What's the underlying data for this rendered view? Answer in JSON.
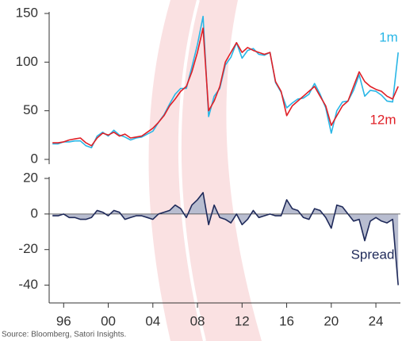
{
  "chart_data": [
    {
      "type": "line",
      "x": [
        1995,
        1995.5,
        1996,
        1996.5,
        1997,
        1997.5,
        1998,
        1998.5,
        1999,
        1999.5,
        2000,
        2000.5,
        2001,
        2001.5,
        2002,
        2002.5,
        2003,
        2003.5,
        2004,
        2004.5,
        2005,
        2005.5,
        2006,
        2006.5,
        2007,
        2007.5,
        2008,
        2008.5,
        2009,
        2009.5,
        2010,
        2010.5,
        2011,
        2011.5,
        2012,
        2012.5,
        2013,
        2013.5,
        2014,
        2014.5,
        2015,
        2015.5,
        2016,
        2016.5,
        2017,
        2017.5,
        2018,
        2018.5,
        2019,
        2019.5,
        2020,
        2020.5,
        2021,
        2021.5,
        2022,
        2022.5,
        2023,
        2023.5,
        2024,
        2024.5,
        2025,
        2025.5,
        2026
      ],
      "series": [
        {
          "name": "1m",
          "color": "#29b6e6",
          "values": [
            16,
            16,
            18,
            18,
            19,
            19,
            14,
            12,
            24,
            28,
            24,
            30,
            25,
            23,
            20,
            22,
            23,
            26,
            29,
            38,
            46,
            57,
            67,
            73,
            73,
            95,
            118,
            147,
            44,
            65,
            73,
            97,
            105,
            120,
            104,
            112,
            114,
            108,
            107,
            110,
            79,
            69,
            53,
            58,
            62,
            63,
            67,
            78,
            67,
            53,
            27,
            50,
            59,
            60,
            71,
            87,
            65,
            71,
            70,
            66,
            60,
            59,
            110
          ]
        },
        {
          "name": "12m",
          "color": "#e01f26",
          "values": [
            17,
            17,
            18,
            20,
            21,
            22,
            17,
            14,
            22,
            27,
            25,
            28,
            24,
            26,
            22,
            23,
            24,
            28,
            32,
            38,
            45,
            55,
            62,
            70,
            75,
            90,
            110,
            135,
            50,
            60,
            75,
            100,
            110,
            120,
            110,
            115,
            112,
            110,
            108,
            110,
            80,
            70,
            45,
            55,
            60,
            65,
            70,
            75,
            65,
            55,
            35,
            45,
            55,
            60,
            75,
            90,
            80,
            75,
            72,
            70,
            65,
            62,
            75
          ]
        }
      ],
      "xlim": [
        1994.7,
        2026.2
      ],
      "ylim": [
        0,
        150
      ],
      "yticks": [
        0,
        50,
        100,
        150
      ]
    },
    {
      "type": "area",
      "x": [
        1995,
        1995.5,
        1996,
        1996.5,
        1997,
        1997.5,
        1998,
        1998.5,
        1999,
        1999.5,
        2000,
        2000.5,
        2001,
        2001.5,
        2002,
        2002.5,
        2003,
        2003.5,
        2004,
        2004.5,
        2005,
        2005.5,
        2006,
        2006.5,
        2007,
        2007.5,
        2008,
        2008.5,
        2009,
        2009.5,
        2010,
        2010.5,
        2011,
        2011.5,
        2012,
        2012.5,
        2013,
        2013.5,
        2014,
        2014.5,
        2015,
        2015.5,
        2016,
        2016.5,
        2017,
        2017.5,
        2018,
        2018.5,
        2019,
        2019.5,
        2020,
        2020.5,
        2021,
        2021.5,
        2022,
        2022.5,
        2023,
        2023.5,
        2024,
        2024.5,
        2025,
        2025.5,
        2026
      ],
      "series": [
        {
          "name": "Spread",
          "color": "#1f2a5a",
          "fill": "#b8bdd0",
          "values": [
            -1,
            -1,
            0,
            -2,
            -2,
            -3,
            -3,
            -2,
            2,
            1,
            -1,
            2,
            1,
            -3,
            -2,
            -1,
            -1,
            -2,
            -3,
            0,
            1,
            2,
            5,
            3,
            -2,
            5,
            8,
            12,
            -6,
            5,
            -2,
            -3,
            -5,
            0,
            -6,
            -3,
            2,
            -2,
            -1,
            0,
            -1,
            -1,
            8,
            3,
            2,
            -2,
            -3,
            3,
            2,
            -2,
            -8,
            5,
            4,
            0,
            -4,
            -3,
            -15,
            -4,
            -2,
            -4,
            -5,
            -3,
            -40
          ]
        }
      ],
      "xlim": [
        1994.7,
        2026.2
      ],
      "xticks": [
        {
          "value": 1996,
          "label": "96"
        },
        {
          "value": 2000,
          "label": "00"
        },
        {
          "value": 2004,
          "label": "04"
        },
        {
          "value": 2008,
          "label": "08"
        },
        {
          "value": 2012,
          "label": "12"
        },
        {
          "value": 2016,
          "label": "16"
        },
        {
          "value": 2020,
          "label": "20"
        },
        {
          "value": 2024,
          "label": "24"
        }
      ],
      "ylim": [
        -50,
        20
      ],
      "yticks": [
        -40,
        -20,
        0,
        20
      ]
    }
  ],
  "source": "Source: Bloomberg, Satori Insights."
}
